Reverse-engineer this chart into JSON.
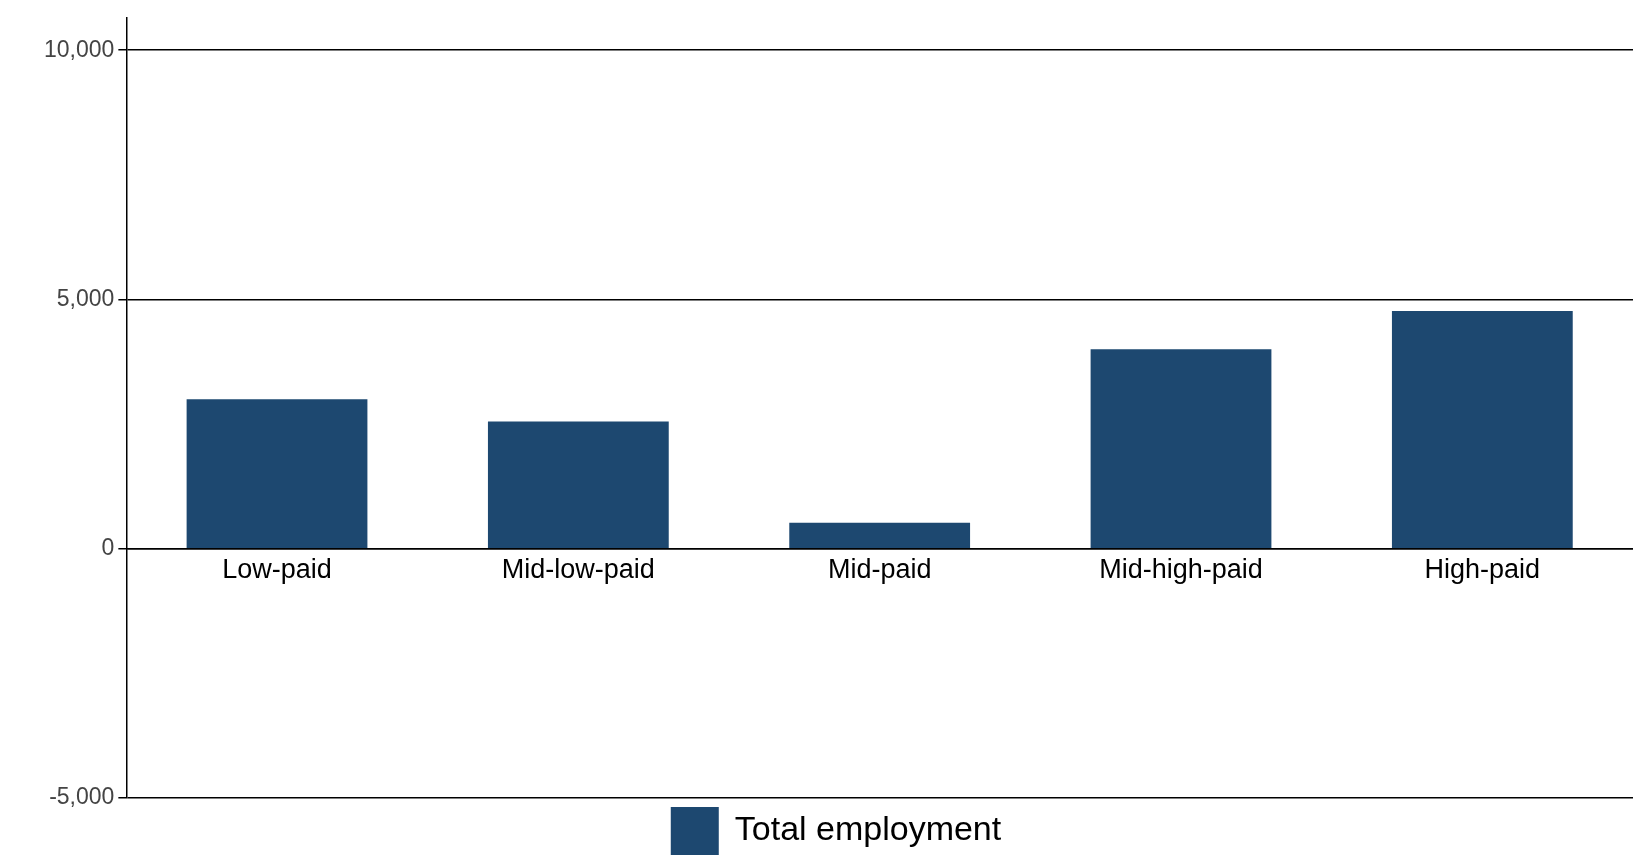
{
  "chart_data": {
    "type": "bar",
    "categories": [
      "Low-paid",
      "Mid-low-paid",
      "Mid-paid",
      "Mid-high-paid",
      "High-paid"
    ],
    "series": [
      {
        "name": "Total employment",
        "color": "#1d4870",
        "values": [
          3000,
          2550,
          520,
          4000,
          4770
        ]
      }
    ],
    "ylim": [
      -5000,
      10650
    ],
    "yticks": [
      {
        "value": -5000,
        "label": "-5,000"
      },
      {
        "value": 0,
        "label": "0"
      },
      {
        "value": 5000,
        "label": "5,000"
      },
      {
        "value": 10000,
        "label": "10,000"
      }
    ],
    "grid": "y",
    "legend": "bottom"
  }
}
